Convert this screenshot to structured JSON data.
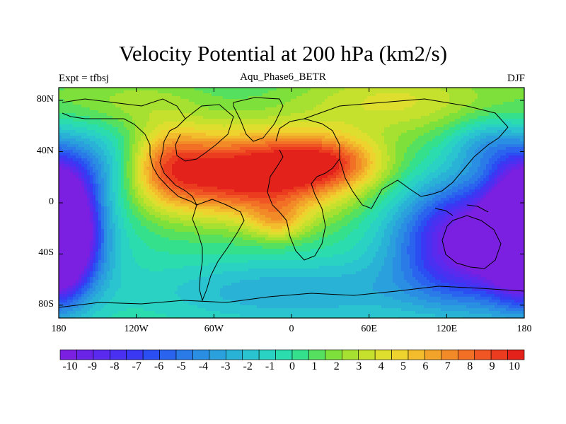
{
  "title": "Velocity Potential at 200 hPa (km2/s)",
  "subtitle_left": "Expt = tfbsj",
  "subtitle_center": "Aqu_Phase6_BETR",
  "subtitle_right": "DJF",
  "lat_ticks": [
    {
      "value": 80,
      "label": "80N"
    },
    {
      "value": 40,
      "label": "40N"
    },
    {
      "value": 0,
      "label": "0"
    },
    {
      "value": -40,
      "label": "40S"
    },
    {
      "value": -80,
      "label": "80S"
    }
  ],
  "lon_ticks": [
    {
      "value": -180,
      "label": "180"
    },
    {
      "value": -120,
      "label": "120W"
    },
    {
      "value": -60,
      "label": "60W"
    },
    {
      "value": 0,
      "label": "0"
    },
    {
      "value": 60,
      "label": "60E"
    },
    {
      "value": 120,
      "label": "120E"
    },
    {
      "value": 180,
      "label": "180"
    }
  ],
  "colorbar": {
    "colors": [
      "#7b1fe0",
      "#6a24e8",
      "#5a2aee",
      "#4a30f0",
      "#3a38f2",
      "#2b4ef2",
      "#2a64ee",
      "#2a7ae8",
      "#2a8ee2",
      "#2aa0dc",
      "#2ab2d6",
      "#2ac4d0",
      "#2ad2c4",
      "#2adcae",
      "#34e08c",
      "#56e060",
      "#7ee03a",
      "#a6e030",
      "#c6e02e",
      "#dede2e",
      "#eed22e",
      "#f2bc2c",
      "#f2a42a",
      "#f28a28",
      "#f27026",
      "#f05624",
      "#ec3c20",
      "#e4221c"
    ],
    "labels": [
      "-10",
      "-9",
      "-8",
      "-7",
      "-6",
      "-5",
      "-4",
      "-3",
      "-2",
      "-1",
      "0",
      "1",
      "2",
      "3",
      "4",
      "5",
      "6",
      "7",
      "8",
      "9",
      "10"
    ]
  },
  "field": {
    "lon_range": [
      -180,
      180
    ],
    "lat_range": [
      -90,
      90
    ],
    "value_range": [
      -10,
      10
    ],
    "centers": [
      {
        "lon": -30,
        "lat": 22,
        "amp": 10.5,
        "sx": 52,
        "sy": 24
      },
      {
        "lon": -95,
        "lat": 30,
        "amp": 4.5,
        "sx": 22,
        "sy": 22
      },
      {
        "lon": 30,
        "lat": 32,
        "amp": 5,
        "sx": 30,
        "sy": 14
      },
      {
        "lon": 140,
        "lat": -30,
        "amp": -11,
        "sx": 40,
        "sy": 32
      },
      {
        "lon": -178,
        "lat": -20,
        "amp": -11,
        "sx": 20,
        "sy": 34
      },
      {
        "lon": 178,
        "lat": -20,
        "amp": -8,
        "sx": 14,
        "sy": 30
      },
      {
        "lon": -150,
        "lat": 30,
        "amp": -3,
        "sx": 25,
        "sy": 20
      },
      {
        "lon": 80,
        "lat": 80,
        "amp": 3.5,
        "sx": 60,
        "sy": 20
      },
      {
        "lon": -120,
        "lat": 80,
        "amp": 2,
        "sx": 40,
        "sy": 15
      },
      {
        "lon": 0,
        "lat": -70,
        "amp": -3,
        "sx": 80,
        "sy": 18
      },
      {
        "lon": 150,
        "lat": 45,
        "amp": -3,
        "sx": 20,
        "sy": 15
      },
      {
        "lon": -10,
        "lat": -15,
        "amp": 3,
        "sx": 15,
        "sy": 10
      }
    ],
    "base": 0.2
  }
}
